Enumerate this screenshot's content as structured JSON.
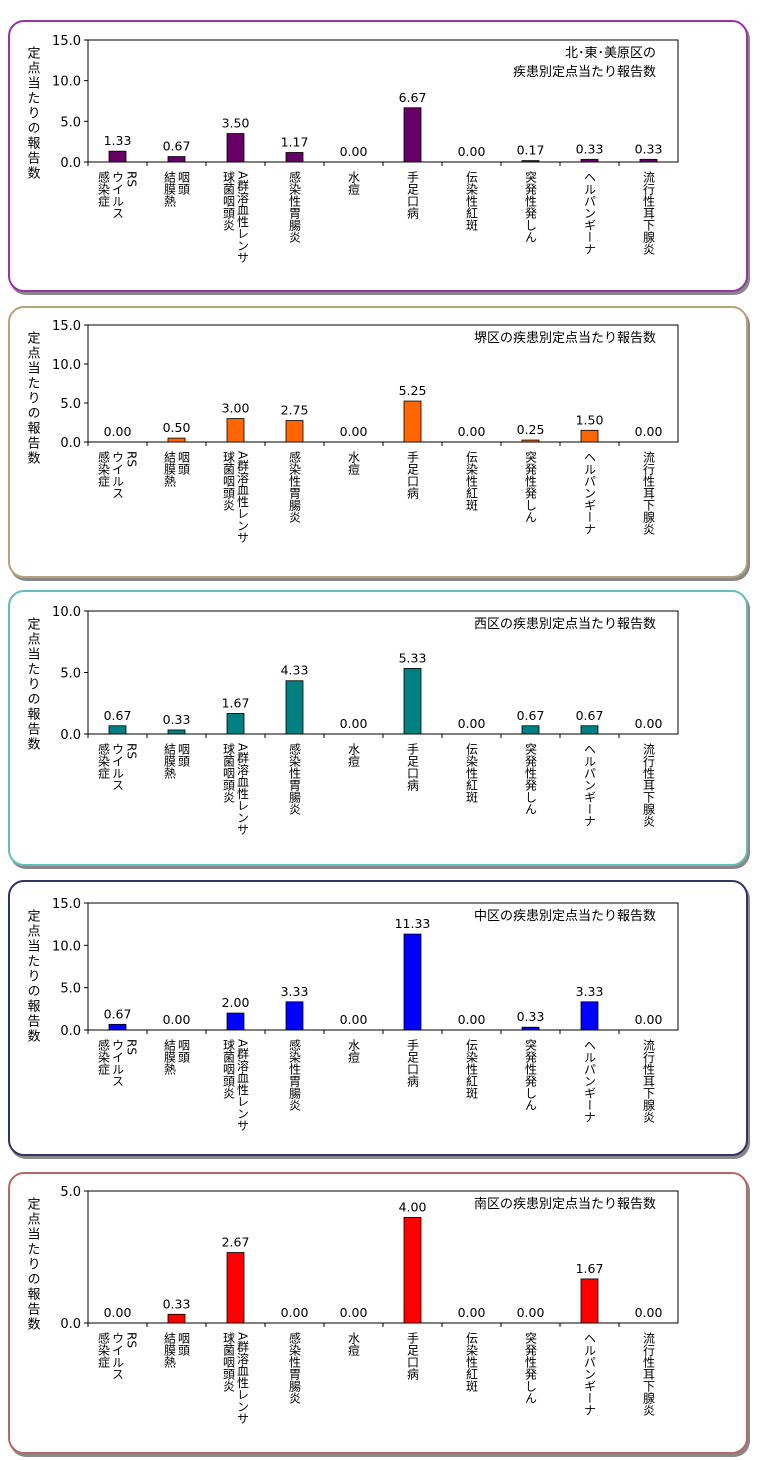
{
  "y_axis_label": "定点当たりの報告数",
  "categories": [
    [
      "RS",
      "ウイルス",
      "感染症"
    ],
    [
      "咽頭",
      "結膜熱"
    ],
    [
      "A群溶血性レンサ",
      "球菌咽頭炎"
    ],
    [
      "感染性胃腸炎"
    ],
    [
      "水痘"
    ],
    [
      "手足口病"
    ],
    [
      "伝染性紅斑"
    ],
    [
      "突発性発しん"
    ],
    [
      "ヘルパンギーナ"
    ],
    [
      "流行性耳下腺炎"
    ]
  ],
  "chart_data": [
    {
      "type": "bar",
      "title": "北･東･美原区の\n疾患別定点当たり報告数",
      "ylabel": "定点当たりの報告数",
      "ylim": [
        0,
        15
      ],
      "yticks": [
        0,
        5,
        10,
        15
      ],
      "ytick_labels": [
        "0.0",
        "5.0",
        "10.0",
        "15.0"
      ],
      "values": [
        1.33,
        0.67,
        3.5,
        1.17,
        0.0,
        6.67,
        0.0,
        0.17,
        0.33,
        0.33
      ],
      "value_labels": [
        "1.33",
        "0.67",
        "3.50",
        "1.17",
        "0.00",
        "6.67",
        "0.00",
        "0.17",
        "0.33",
        "0.33"
      ],
      "color": "#660066",
      "border_color": "#9933aa"
    },
    {
      "type": "bar",
      "title": "堺区の疾患別定点当たり報告数",
      "ylabel": "定点当たりの報告数",
      "ylim": [
        0,
        15
      ],
      "yticks": [
        0,
        5,
        10,
        15
      ],
      "ytick_labels": [
        "0.0",
        "5.0",
        "10.0",
        "15.0"
      ],
      "values": [
        0.0,
        0.5,
        3.0,
        2.75,
        0.0,
        5.25,
        0.0,
        0.25,
        1.5,
        0.0
      ],
      "value_labels": [
        "0.00",
        "0.50",
        "3.00",
        "2.75",
        "0.00",
        "5.25",
        "0.00",
        "0.25",
        "1.50",
        "0.00"
      ],
      "color": "#ff6600",
      "border_color": "#b8a27a"
    },
    {
      "type": "bar",
      "title": "西区の疾患別定点当たり報告数",
      "ylabel": "定点当たりの報告数",
      "ylim": [
        0,
        10
      ],
      "yticks": [
        0,
        5,
        10
      ],
      "ytick_labels": [
        "0.0",
        "5.0",
        "10.0"
      ],
      "values": [
        0.67,
        0.33,
        1.67,
        4.33,
        0.0,
        5.33,
        0.0,
        0.67,
        0.67,
        0.0
      ],
      "value_labels": [
        "0.67",
        "0.33",
        "1.67",
        "4.33",
        "0.00",
        "5.33",
        "0.00",
        "0.67",
        "0.67",
        "0.00"
      ],
      "color": "#008080",
      "border_color": "#66bbbb"
    },
    {
      "type": "bar",
      "title": "中区の疾患別定点当たり報告数",
      "ylabel": "定点当たりの報告数",
      "ylim": [
        0,
        15
      ],
      "yticks": [
        0,
        5,
        10,
        15
      ],
      "ytick_labels": [
        "0.0",
        "5.0",
        "10.0",
        "15.0"
      ],
      "values": [
        0.67,
        0.0,
        2.0,
        3.33,
        0.0,
        11.33,
        0.0,
        0.33,
        3.33,
        0.0
      ],
      "value_labels": [
        "0.67",
        "0.00",
        "2.00",
        "3.33",
        "0.00",
        "11.33",
        "0.00",
        "0.33",
        "3.33",
        "0.00"
      ],
      "color": "#0000ff",
      "border_color": "#333366"
    },
    {
      "type": "bar",
      "title": "南区の疾患別定点当たり報告数",
      "ylabel": "定点当たりの報告数",
      "ylim": [
        0,
        5
      ],
      "yticks": [
        0,
        5
      ],
      "ytick_labels": [
        "0.0",
        "5.0"
      ],
      "values": [
        0.0,
        0.33,
        2.67,
        0.0,
        0.0,
        4.0,
        0.0,
        0.0,
        1.67,
        0.0
      ],
      "value_labels": [
        "0.00",
        "0.33",
        "2.67",
        "0.00",
        "0.00",
        "4.00",
        "0.00",
        "0.00",
        "1.67",
        "0.00"
      ],
      "color": "#ff0000",
      "border_color": "#bb6666"
    }
  ]
}
